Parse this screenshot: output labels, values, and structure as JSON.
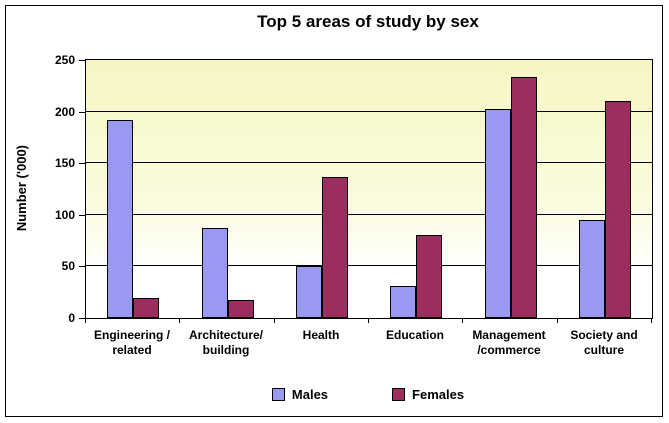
{
  "chart_data": {
    "type": "bar",
    "title": "Top 5 areas of study by sex",
    "xlabel": "",
    "ylabel": "Number ('000)",
    "categories": [
      "Engineering / related",
      "Architecture/ building",
      "Health",
      "Education",
      "Management /commerce",
      "Society and culture"
    ],
    "category_display": [
      "Engineering /\nrelated",
      "Architecture/\nbuilding",
      "Health",
      "Education",
      "Management\n/commerce",
      "Society and\nculture"
    ],
    "series": [
      {
        "name": "Males",
        "color": "#9999F2",
        "values": [
          192,
          87,
          50,
          31,
          203,
          95
        ]
      },
      {
        "name": "Females",
        "color": "#9A2F5F",
        "values": [
          19,
          17,
          137,
          80,
          234,
          210
        ]
      }
    ],
    "ylim": [
      0,
      250
    ],
    "yticks": [
      0,
      50,
      100,
      150,
      200,
      250
    ],
    "grid": true,
    "legend_position": "bottom-center",
    "colors": {
      "plot_bg_top": "#F6F6C3",
      "plot_bg_mid": "#FBFBDE",
      "plot_bg_bottom": "#FFFFFF",
      "gridline": "#000000",
      "bar_border": "#000000",
      "text": "#000000"
    }
  }
}
